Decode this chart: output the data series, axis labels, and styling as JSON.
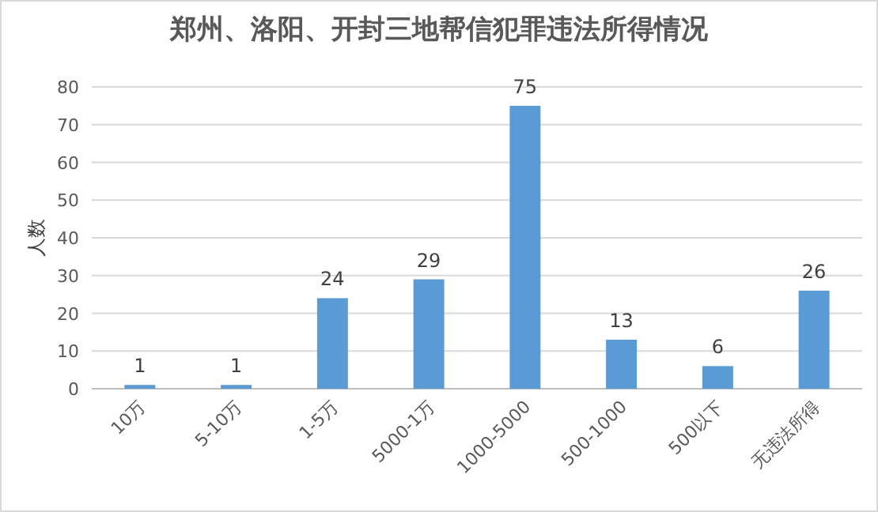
{
  "chart_data": {
    "type": "bar",
    "title": "郑州、洛阳、开封三地帮信犯罪违法所得情况",
    "ylabel": "人数",
    "categories": [
      "10万",
      "5-10万",
      "1-5万",
      "5000-1万",
      "1000-5000",
      "500-1000",
      "500以下",
      "无违法所得"
    ],
    "values": [
      1,
      1,
      24,
      29,
      75,
      13,
      6,
      26
    ],
    "color": "#5b9bd5",
    "ylim": [
      0,
      80
    ],
    "yticks": [
      0,
      10,
      20,
      30,
      40,
      50,
      60,
      70,
      80
    ],
    "grid": "y",
    "data_labels": true
  }
}
